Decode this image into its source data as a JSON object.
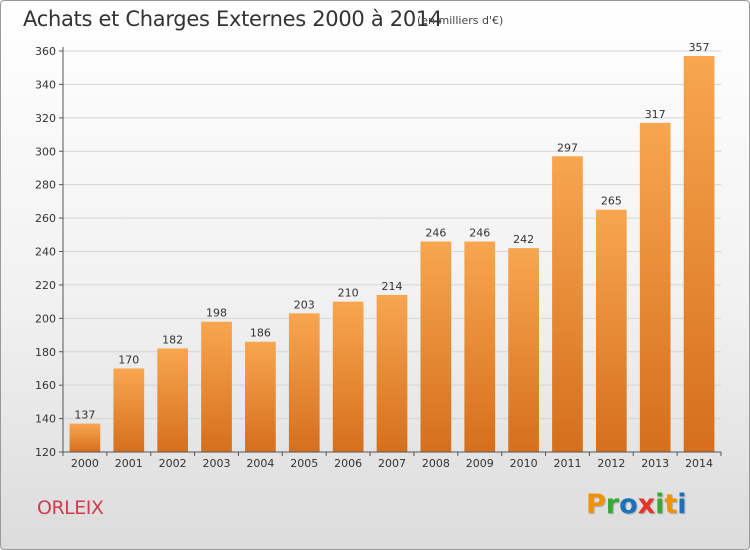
{
  "title": "Achats et Charges Externes 2000 à 2014",
  "subtitle": "(en milliers d'€)",
  "city": "ORLEIX",
  "logo": {
    "letters": [
      "P",
      "r",
      "o",
      "x",
      "i",
      "t",
      "i"
    ],
    "colors": [
      "#f39200",
      "#3aaa35",
      "#1d71b8",
      "#e6332a",
      "#3aaa35",
      "#f39200",
      "#1d71b8"
    ]
  },
  "colors": {
    "bar_top": "#f8a650",
    "bar_bottom": "#d56f1c",
    "grid": "#d4d4d4",
    "axis": "#555555",
    "city": "#d03b50"
  },
  "chart_data": {
    "type": "bar",
    "title": "Achats et Charges Externes 2000 à 2014",
    "subtitle": "(en milliers d'€)",
    "xlabel": "",
    "ylabel": "",
    "categories": [
      "2000",
      "2001",
      "2002",
      "2003",
      "2004",
      "2005",
      "2006",
      "2007",
      "2008",
      "2009",
      "2010",
      "2011",
      "2012",
      "2013",
      "2014"
    ],
    "values": [
      137,
      170,
      182,
      198,
      186,
      203,
      210,
      214,
      246,
      246,
      242,
      297,
      265,
      317,
      357
    ],
    "ylim": [
      120,
      360
    ],
    "yticks": [
      120,
      140,
      160,
      180,
      200,
      220,
      240,
      260,
      280,
      300,
      320,
      340,
      360
    ],
    "grid": true,
    "legend": "none"
  }
}
